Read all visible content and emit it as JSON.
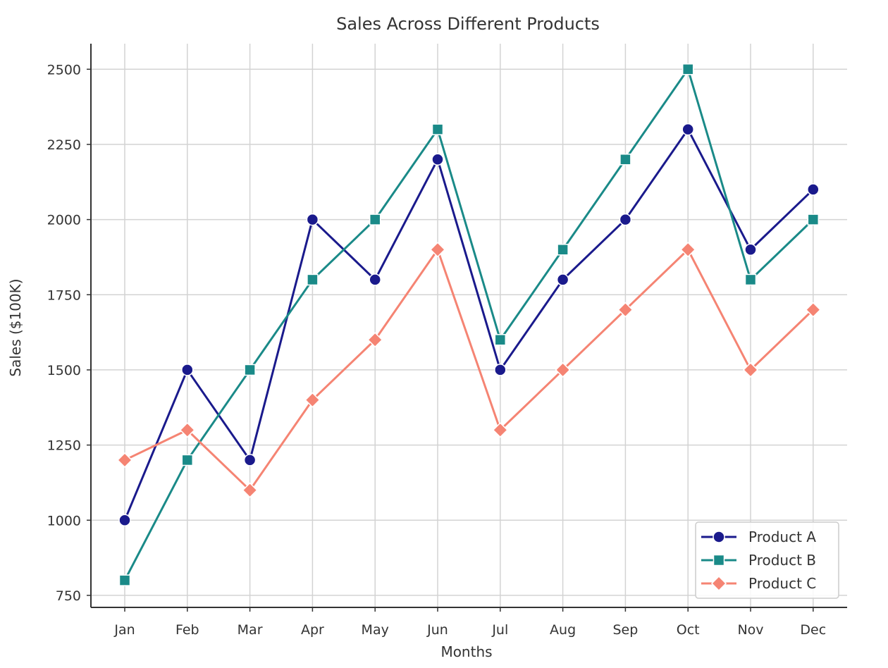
{
  "chart_data": {
    "type": "line",
    "title": "Sales Across Different Products",
    "xlabel": "Months",
    "ylabel": "Sales ($100K)",
    "categories": [
      "Jan",
      "Feb",
      "Mar",
      "Apr",
      "May",
      "Jun",
      "Jul",
      "Aug",
      "Sep",
      "Oct",
      "Nov",
      "Dec"
    ],
    "ylim": [
      710,
      2585
    ],
    "yticks": [
      750,
      1000,
      1250,
      1500,
      1750,
      2000,
      2250,
      2500
    ],
    "grid": true,
    "legend_position": "bottom-right",
    "series": [
      {
        "name": "Product A",
        "color": "#1a1a8c",
        "marker": "circle",
        "values": [
          1000,
          1500,
          1200,
          2000,
          1800,
          2200,
          1500,
          1800,
          2000,
          2300,
          1900,
          2100
        ]
      },
      {
        "name": "Product B",
        "color": "#1a8a88",
        "marker": "square",
        "values": [
          800,
          1200,
          1500,
          1800,
          2000,
          2300,
          1600,
          1900,
          2200,
          2500,
          1800,
          2000
        ]
      },
      {
        "name": "Product C",
        "color": "#f58473",
        "marker": "diamond",
        "values": [
          1200,
          1300,
          1100,
          1400,
          1600,
          1900,
          1300,
          1500,
          1700,
          1900,
          1500,
          1700
        ]
      }
    ]
  }
}
